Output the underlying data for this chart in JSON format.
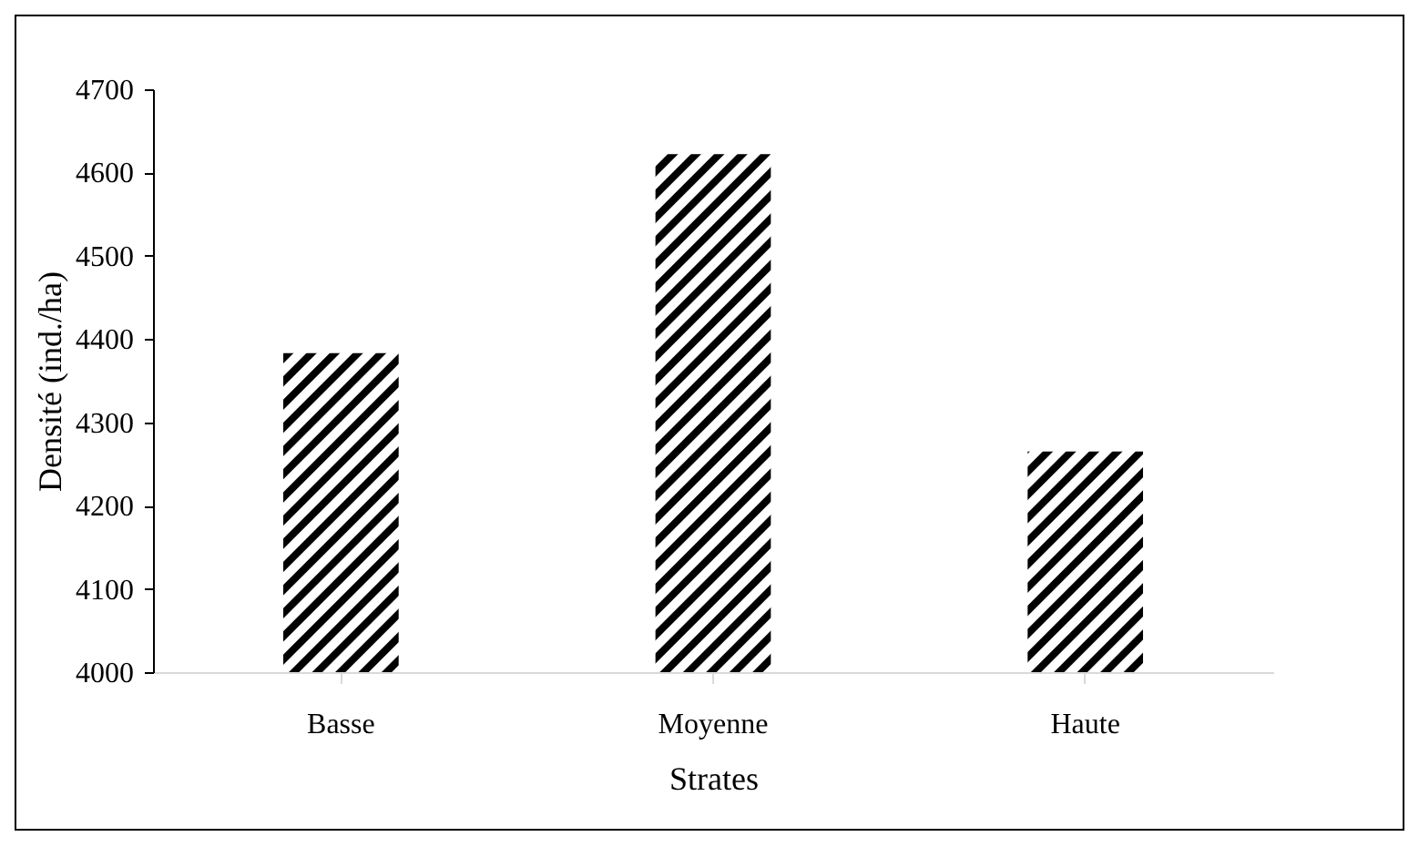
{
  "chart_data": {
    "type": "bar",
    "xlabel": "Strates",
    "ylabel": "Densité (ind./ha)",
    "categories": [
      "Basse",
      "Moyenne",
      "Haute"
    ],
    "values": [
      4383,
      4622,
      4265
    ],
    "color": "#000000",
    "ylim": [
      4000,
      4700
    ],
    "yticks": [
      4000,
      4100,
      4200,
      4300,
      4400,
      4500,
      4600,
      4700
    ],
    "grid": false
  }
}
